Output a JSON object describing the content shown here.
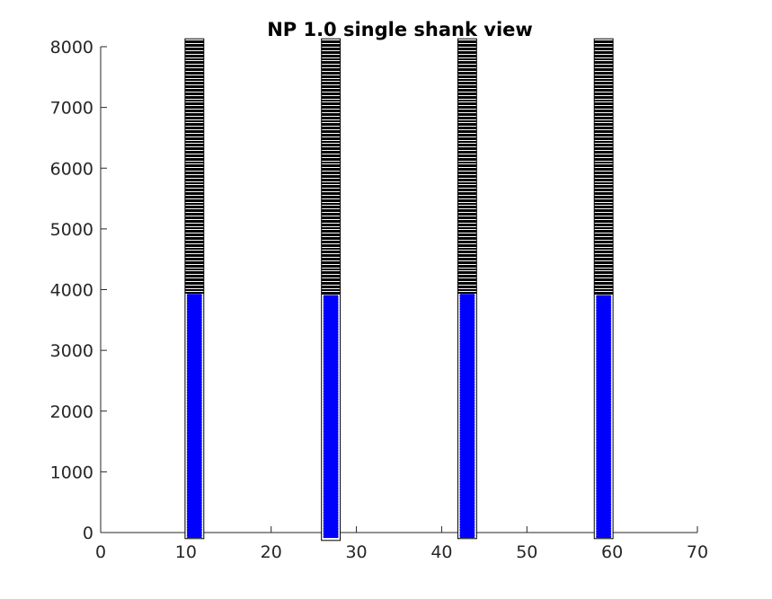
{
  "chart_data": {
    "type": "bar",
    "title": "NP 1.0 single shank view",
    "xlabel": "",
    "ylabel": "",
    "xlim": [
      0,
      70
    ],
    "ylim": [
      -80,
      8050
    ],
    "xticks": [
      0,
      10,
      20,
      30,
      40,
      50,
      60,
      70
    ],
    "yticks": [
      0,
      1000,
      2000,
      3000,
      4000,
      5000,
      6000,
      7000,
      8000
    ],
    "grid": false,
    "site_rows": 480,
    "site_pitch_um": 20,
    "columns": [
      {
        "x_left": 9.9,
        "x_right": 12.1,
        "y_bottom": -100,
        "y_top": 8130
      },
      {
        "x_left": 25.9,
        "x_right": 28.1,
        "y_bottom": -130,
        "y_top": 8130
      },
      {
        "x_left": 41.9,
        "x_right": 44.1,
        "y_bottom": -100,
        "y_top": 8130
      },
      {
        "x_left": 57.9,
        "x_right": 60.1,
        "y_bottom": -100,
        "y_top": 8130
      }
    ],
    "series": [
      {
        "values": [
          3930,
          3910,
          3930,
          3910
        ],
        "color": "#0000ff"
      }
    ],
    "colors": {
      "selected": "#0000ff",
      "site_edge": "#000000",
      "axis": "#262626"
    }
  }
}
